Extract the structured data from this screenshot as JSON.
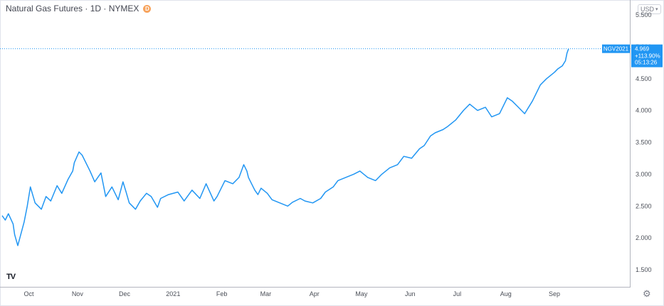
{
  "header": {
    "title": "Natural Gas Futures · 1D · NYMEX",
    "badge": "D"
  },
  "currency_selector": {
    "label": "USD",
    "caret_icon": "chevron-down-icon"
  },
  "logo": {
    "text": "TV"
  },
  "settings_icon": "gear-icon",
  "price_label": {
    "symbol": "NGV2021",
    "price": "4.969",
    "change": "+113.90%",
    "countdown": "05:13:26",
    "color": "#2196f3"
  },
  "chart_data": {
    "type": "line",
    "line_color": "#2196f3",
    "grid": false,
    "y_axis_side": "right",
    "ylim": [
      1.25,
      5.5
    ],
    "y_ticks": [
      1.5,
      2.0,
      2.5,
      3.0,
      3.5,
      4.0,
      4.5,
      5.0,
      5.5
    ],
    "y_tick_labels": [
      "1.500",
      "2.000",
      "2.500",
      "3.000",
      "3.500",
      "4.000",
      "4.500",
      "5.000",
      "5.500"
    ],
    "x_range": [
      "2020-09-14",
      "2021-09-30"
    ],
    "x_ticks": [
      {
        "label": "Oct",
        "date": "2020-10-01"
      },
      {
        "label": "Nov",
        "date": "2020-11-01"
      },
      {
        "label": "Dec",
        "date": "2020-12-01"
      },
      {
        "label": "2021",
        "date": "2021-01-01"
      },
      {
        "label": "Feb",
        "date": "2021-02-01"
      },
      {
        "label": "Mar",
        "date": "2021-03-01"
      },
      {
        "label": "Apr",
        "date": "2021-04-01"
      },
      {
        "label": "May",
        "date": "2021-05-01"
      },
      {
        "label": "Jun",
        "date": "2021-06-01"
      },
      {
        "label": "Jul",
        "date": "2021-07-01"
      },
      {
        "label": "Aug",
        "date": "2021-08-01"
      },
      {
        "label": "Sep",
        "date": "2021-09-01"
      }
    ],
    "last_value": 4.969,
    "series": [
      {
        "x": [
          "2020-09-14",
          "2020-09-16",
          "2020-09-18",
          "2020-09-21",
          "2020-09-22",
          "2020-09-24",
          "2020-09-28",
          "2020-09-30",
          "2020-10-02",
          "2020-10-05",
          "2020-10-09",
          "2020-10-12",
          "2020-10-15",
          "2020-10-19",
          "2020-10-22",
          "2020-10-26",
          "2020-10-29",
          "2020-10-30",
          "2020-11-02",
          "2020-11-04",
          "2020-11-09",
          "2020-11-12",
          "2020-11-16",
          "2020-11-19",
          "2020-11-23",
          "2020-11-27",
          "2020-11-30",
          "2020-12-02",
          "2020-12-04",
          "2020-12-08",
          "2020-12-11",
          "2020-12-15",
          "2020-12-18",
          "2020-12-22",
          "2020-12-24",
          "2020-12-29",
          "2021-01-04",
          "2021-01-08",
          "2021-01-13",
          "2021-01-18",
          "2021-01-22",
          "2021-01-27",
          "2021-01-29",
          "2021-02-03",
          "2021-02-08",
          "2021-02-12",
          "2021-02-15",
          "2021-02-17",
          "2021-02-18",
          "2021-02-19",
          "2021-02-22",
          "2021-02-24",
          "2021-02-26",
          "2021-03-02",
          "2021-03-05",
          "2021-03-10",
          "2021-03-15",
          "2021-03-18",
          "2021-03-23",
          "2021-03-26",
          "2021-03-31",
          "2021-04-05",
          "2021-04-08",
          "2021-04-13",
          "2021-04-16",
          "2021-04-21",
          "2021-04-26",
          "2021-04-30",
          "2021-05-05",
          "2021-05-10",
          "2021-05-14",
          "2021-05-19",
          "2021-05-24",
          "2021-05-28",
          "2021-06-02",
          "2021-06-07",
          "2021-06-10",
          "2021-06-14",
          "2021-06-17",
          "2021-06-22",
          "2021-06-25",
          "2021-06-30",
          "2021-07-05",
          "2021-07-09",
          "2021-07-14",
          "2021-07-19",
          "2021-07-23",
          "2021-07-28",
          "2021-08-02",
          "2021-08-05",
          "2021-08-09",
          "2021-08-13",
          "2021-08-18",
          "2021-08-23",
          "2021-08-27",
          "2021-09-01",
          "2021-09-03",
          "2021-09-06",
          "2021-09-08",
          "2021-09-09",
          "2021-09-10"
        ],
        "values": [
          2.35,
          2.28,
          2.38,
          2.22,
          2.05,
          1.88,
          2.25,
          2.5,
          2.8,
          2.55,
          2.45,
          2.65,
          2.58,
          2.82,
          2.7,
          2.92,
          3.05,
          3.18,
          3.35,
          3.3,
          3.05,
          2.88,
          3.02,
          2.65,
          2.8,
          2.6,
          2.88,
          2.72,
          2.55,
          2.45,
          2.58,
          2.7,
          2.65,
          2.48,
          2.62,
          2.68,
          2.72,
          2.58,
          2.75,
          2.62,
          2.85,
          2.58,
          2.65,
          2.9,
          2.85,
          2.95,
          3.15,
          3.05,
          2.95,
          2.9,
          2.75,
          2.68,
          2.78,
          2.7,
          2.6,
          2.55,
          2.5,
          2.56,
          2.62,
          2.58,
          2.55,
          2.62,
          2.72,
          2.8,
          2.9,
          2.95,
          3.0,
          3.05,
          2.95,
          2.9,
          3.0,
          3.1,
          3.15,
          3.28,
          3.25,
          3.4,
          3.45,
          3.6,
          3.65,
          3.7,
          3.75,
          3.85,
          4.0,
          4.1,
          4.0,
          4.05,
          3.9,
          3.95,
          4.2,
          4.15,
          4.05,
          3.95,
          4.15,
          4.4,
          4.5,
          4.6,
          4.65,
          4.7,
          4.78,
          4.9,
          4.969
        ]
      }
    ]
  }
}
